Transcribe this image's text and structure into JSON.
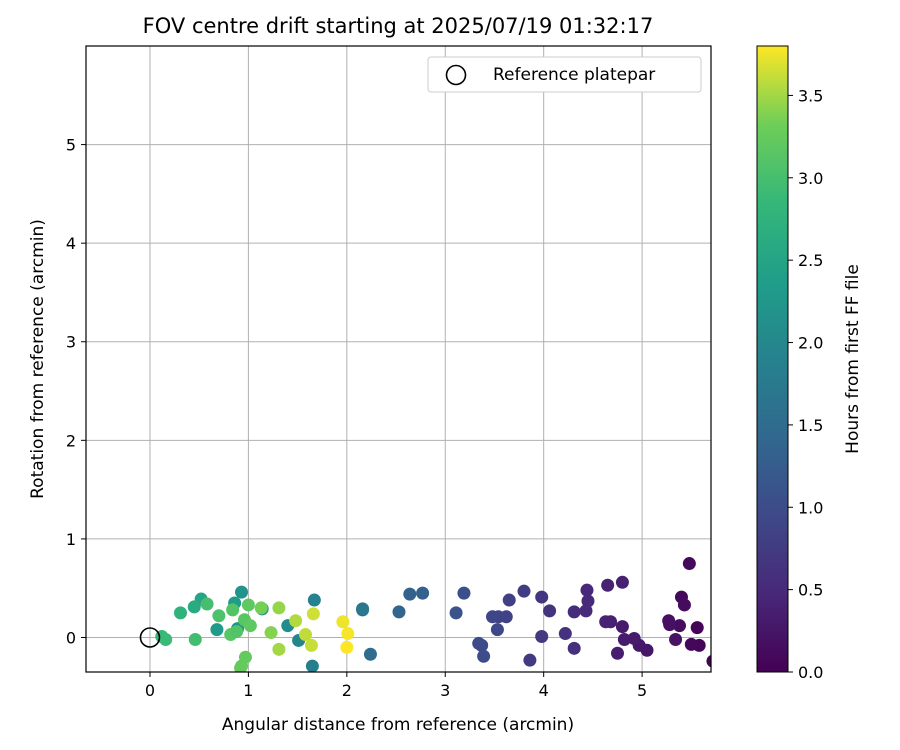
{
  "chart_data": {
    "type": "scatter",
    "title": "FOV centre drift starting at 2025/07/19 01:32:17",
    "xlabel": "Angular distance from reference (arcmin)",
    "ylabel": "Rotation from reference (arcmin)",
    "xlim": [
      -0.65,
      5.7
    ],
    "ylim": [
      -0.35,
      6.0
    ],
    "x_ticks": [
      0,
      1,
      2,
      3,
      4,
      5
    ],
    "y_ticks": [
      0,
      1,
      2,
      3,
      4,
      5
    ],
    "grid": true,
    "legend": {
      "position": "top-right",
      "entries": [
        "Reference platepar"
      ]
    },
    "reference_point": {
      "x": 0,
      "y": 0
    },
    "colorbar": {
      "label": "Hours from first FF file",
      "colormap": "viridis",
      "range": [
        0.0,
        3.8
      ],
      "ticks": [
        0.0,
        0.5,
        1.0,
        1.5,
        2.0,
        2.5,
        3.0,
        3.5
      ]
    },
    "points": [
      {
        "x": 5.72,
        "y": -0.24,
        "t": 0.02
      },
      {
        "x": 5.48,
        "y": 0.75,
        "t": 0.1
      },
      {
        "x": 5.4,
        "y": 0.41,
        "t": 0.1
      },
      {
        "x": 5.43,
        "y": 0.33,
        "t": 0.12
      },
      {
        "x": 5.56,
        "y": 0.1,
        "t": 0.05
      },
      {
        "x": 5.58,
        "y": -0.08,
        "t": 0.06
      },
      {
        "x": 5.5,
        "y": -0.07,
        "t": 0.07
      },
      {
        "x": 5.38,
        "y": 0.12,
        "t": 0.14
      },
      {
        "x": 5.27,
        "y": 0.17,
        "t": 0.18
      },
      {
        "x": 5.28,
        "y": 0.13,
        "t": 0.2
      },
      {
        "x": 5.34,
        "y": -0.02,
        "t": 0.22
      },
      {
        "x": 5.05,
        "y": -0.13,
        "t": 0.25
      },
      {
        "x": 4.97,
        "y": -0.08,
        "t": 0.27
      },
      {
        "x": 4.92,
        "y": -0.01,
        "t": 0.3
      },
      {
        "x": 4.82,
        "y": -0.02,
        "t": 0.33
      },
      {
        "x": 4.8,
        "y": 0.11,
        "t": 0.32
      },
      {
        "x": 4.75,
        "y": -0.16,
        "t": 0.35
      },
      {
        "x": 4.68,
        "y": 0.16,
        "t": 0.38
      },
      {
        "x": 4.63,
        "y": 0.16,
        "t": 0.42
      },
      {
        "x": 4.8,
        "y": 0.56,
        "t": 0.4
      },
      {
        "x": 4.65,
        "y": 0.53,
        "t": 0.42
      },
      {
        "x": 4.44,
        "y": 0.48,
        "t": 0.48
      },
      {
        "x": 4.45,
        "y": 0.37,
        "t": 0.5
      },
      {
        "x": 4.43,
        "y": 0.27,
        "t": 0.52
      },
      {
        "x": 4.31,
        "y": 0.26,
        "t": 0.55
      },
      {
        "x": 4.31,
        "y": -0.11,
        "t": 0.58
      },
      {
        "x": 4.22,
        "y": 0.04,
        "t": 0.62
      },
      {
        "x": 4.06,
        "y": 0.27,
        "t": 0.65
      },
      {
        "x": 3.98,
        "y": 0.41,
        "t": 0.68
      },
      {
        "x": 3.98,
        "y": 0.01,
        "t": 0.72
      },
      {
        "x": 3.86,
        "y": -0.23,
        "t": 0.75
      },
      {
        "x": 3.8,
        "y": 0.47,
        "t": 0.78
      },
      {
        "x": 3.65,
        "y": 0.38,
        "t": 0.82
      },
      {
        "x": 3.62,
        "y": 0.21,
        "t": 0.85
      },
      {
        "x": 3.54,
        "y": 0.21,
        "t": 0.88
      },
      {
        "x": 3.48,
        "y": 0.21,
        "t": 0.9
      },
      {
        "x": 3.53,
        "y": 0.08,
        "t": 0.93
      },
      {
        "x": 3.37,
        "y": -0.08,
        "t": 0.96
      },
      {
        "x": 3.34,
        "y": -0.06,
        "t": 0.98
      },
      {
        "x": 3.39,
        "y": -0.19,
        "t": 1.0
      },
      {
        "x": 3.19,
        "y": 0.45,
        "t": 1.05
      },
      {
        "x": 3.11,
        "y": 0.25,
        "t": 1.1
      },
      {
        "x": 2.77,
        "y": 0.45,
        "t": 1.3
      },
      {
        "x": 2.64,
        "y": 0.44,
        "t": 1.35
      },
      {
        "x": 2.53,
        "y": 0.26,
        "t": 1.4
      },
      {
        "x": 2.24,
        "y": -0.17,
        "t": 1.5
      },
      {
        "x": 2.16,
        "y": 0.28,
        "t": 1.55
      },
      {
        "x": 2.16,
        "y": 0.29,
        "t": 1.7
      },
      {
        "x": 1.67,
        "y": 0.38,
        "t": 1.9
      },
      {
        "x": 1.65,
        "y": -0.29,
        "t": 1.85
      },
      {
        "x": 1.51,
        "y": -0.03,
        "t": 1.95
      },
      {
        "x": 1.4,
        "y": 0.12,
        "t": 2.05
      },
      {
        "x": 1.14,
        "y": 0.29,
        "t": 2.15
      },
      {
        "x": 0.93,
        "y": 0.46,
        "t": 2.2
      },
      {
        "x": 0.89,
        "y": 0.09,
        "t": 2.25
      },
      {
        "x": 0.68,
        "y": 0.08,
        "t": 2.3
      },
      {
        "x": 0.86,
        "y": 0.35,
        "t": 2.35
      },
      {
        "x": 0.52,
        "y": 0.39,
        "t": 2.5
      },
      {
        "x": 0.45,
        "y": 0.31,
        "t": 2.6
      },
      {
        "x": 0.31,
        "y": 0.25,
        "t": 2.75
      },
      {
        "x": 0.12,
        "y": 0.01,
        "t": 2.85
      },
      {
        "x": 0.16,
        "y": -0.02,
        "t": 2.9
      },
      {
        "x": 0.46,
        "y": -0.02,
        "t": 2.95
      },
      {
        "x": 0.58,
        "y": 0.34,
        "t": 3.0
      },
      {
        "x": 0.7,
        "y": 0.22,
        "t": 3.05
      },
      {
        "x": 0.84,
        "y": 0.28,
        "t": 3.1
      },
      {
        "x": 0.82,
        "y": 0.03,
        "t": 3.15
      },
      {
        "x": 0.88,
        "y": 0.06,
        "t": 3.1
      },
      {
        "x": 0.96,
        "y": 0.18,
        "t": 3.15
      },
      {
        "x": 1.0,
        "y": 0.33,
        "t": 3.2
      },
      {
        "x": 1.02,
        "y": 0.12,
        "t": 3.2
      },
      {
        "x": 0.93,
        "y": -0.29,
        "t": 3.2
      },
      {
        "x": 0.97,
        "y": -0.2,
        "t": 3.25
      },
      {
        "x": 0.92,
        "y": -0.31,
        "t": 3.25
      },
      {
        "x": 1.13,
        "y": 0.3,
        "t": 3.35
      },
      {
        "x": 1.23,
        "y": 0.05,
        "t": 3.4
      },
      {
        "x": 1.31,
        "y": 0.3,
        "t": 3.45
      },
      {
        "x": 1.31,
        "y": -0.12,
        "t": 3.5
      },
      {
        "x": 1.48,
        "y": 0.17,
        "t": 3.55
      },
      {
        "x": 1.58,
        "y": 0.03,
        "t": 3.6
      },
      {
        "x": 1.64,
        "y": -0.08,
        "t": 3.62
      },
      {
        "x": 1.66,
        "y": 0.24,
        "t": 3.65
      },
      {
        "x": 1.96,
        "y": 0.16,
        "t": 3.75
      },
      {
        "x": 2.01,
        "y": 0.04,
        "t": 3.78
      },
      {
        "x": 2.0,
        "y": -0.1,
        "t": 3.8
      }
    ]
  }
}
